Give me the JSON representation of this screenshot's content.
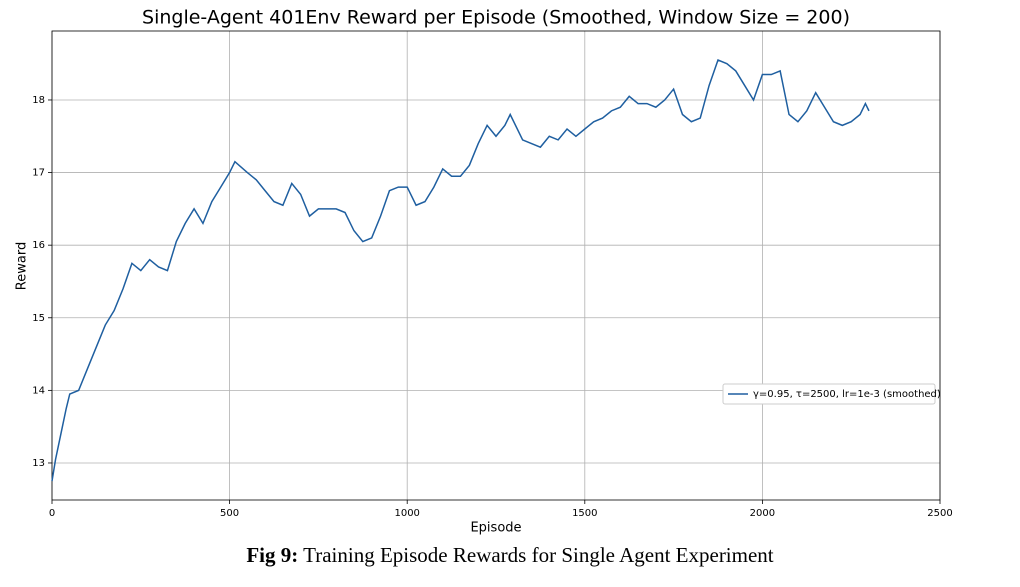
{
  "chart_data": {
    "type": "line",
    "title": "Single-Agent 401Env Reward per Episode (Smoothed, Window Size = 200)",
    "xlabel": "Episode",
    "ylabel": "Reward",
    "x": [
      0,
      10,
      25,
      40,
      50,
      75,
      100,
      125,
      150,
      175,
      200,
      225,
      250,
      275,
      300,
      325,
      350,
      375,
      400,
      425,
      450,
      475,
      500,
      515,
      550,
      575,
      600,
      625,
      650,
      675,
      700,
      725,
      750,
      775,
      800,
      825,
      850,
      875,
      900,
      925,
      950,
      975,
      1000,
      1025,
      1050,
      1075,
      1100,
      1125,
      1150,
      1175,
      1200,
      1225,
      1250,
      1275,
      1290,
      1325,
      1350,
      1375,
      1400,
      1425,
      1450,
      1475,
      1500,
      1525,
      1550,
      1575,
      1600,
      1625,
      1650,
      1675,
      1700,
      1725,
      1750,
      1775,
      1800,
      1825,
      1850,
      1875,
      1900,
      1925,
      1950,
      1975,
      2000,
      2025,
      2050,
      2075,
      2100,
      2125,
      2150,
      2175,
      2200,
      2225,
      2250,
      2275,
      2290,
      2300
    ],
    "series": [
      {
        "name": "γ=0.95, τ=2500, lr=1e-3 (smoothed)",
        "color": "#1f5fa0",
        "values": [
          12.75,
          13.05,
          13.4,
          13.75,
          13.95,
          14.0,
          14.3,
          14.6,
          14.9,
          15.1,
          15.4,
          15.75,
          15.65,
          15.8,
          15.7,
          15.65,
          16.05,
          16.3,
          16.5,
          16.3,
          16.6,
          16.8,
          17.0,
          17.15,
          17.0,
          16.9,
          16.75,
          16.6,
          16.55,
          16.85,
          16.7,
          16.4,
          16.5,
          16.5,
          16.5,
          16.45,
          16.2,
          16.05,
          16.1,
          16.4,
          16.75,
          16.8,
          16.8,
          16.55,
          16.6,
          16.8,
          17.05,
          16.95,
          16.95,
          17.1,
          17.4,
          17.65,
          17.5,
          17.65,
          17.8,
          17.45,
          17.4,
          17.35,
          17.5,
          17.45,
          17.6,
          17.5,
          17.6,
          17.7,
          17.75,
          17.85,
          17.9,
          18.05,
          17.95,
          17.95,
          17.9,
          18.0,
          18.15,
          17.8,
          17.7,
          17.75,
          18.2,
          18.55,
          18.5,
          18.4,
          18.2,
          18.0,
          18.35,
          18.35,
          18.4,
          17.8,
          17.7,
          17.85,
          18.1,
          17.9,
          17.7,
          17.65,
          17.7,
          17.8,
          17.95,
          17.85
        ]
      }
    ],
    "xlim": [
      0,
      2500
    ],
    "xticks": [
      0,
      500,
      1000,
      1500,
      2000,
      2500
    ],
    "ylim": [
      12.49,
      18.95
    ],
    "yticks": [
      13,
      14,
      15,
      16,
      17,
      18
    ],
    "grid": true,
    "legend_loc": "lower right"
  },
  "caption": {
    "label": "Fig 9:",
    "text": "Training Episode Rewards for Single Agent Experiment"
  }
}
